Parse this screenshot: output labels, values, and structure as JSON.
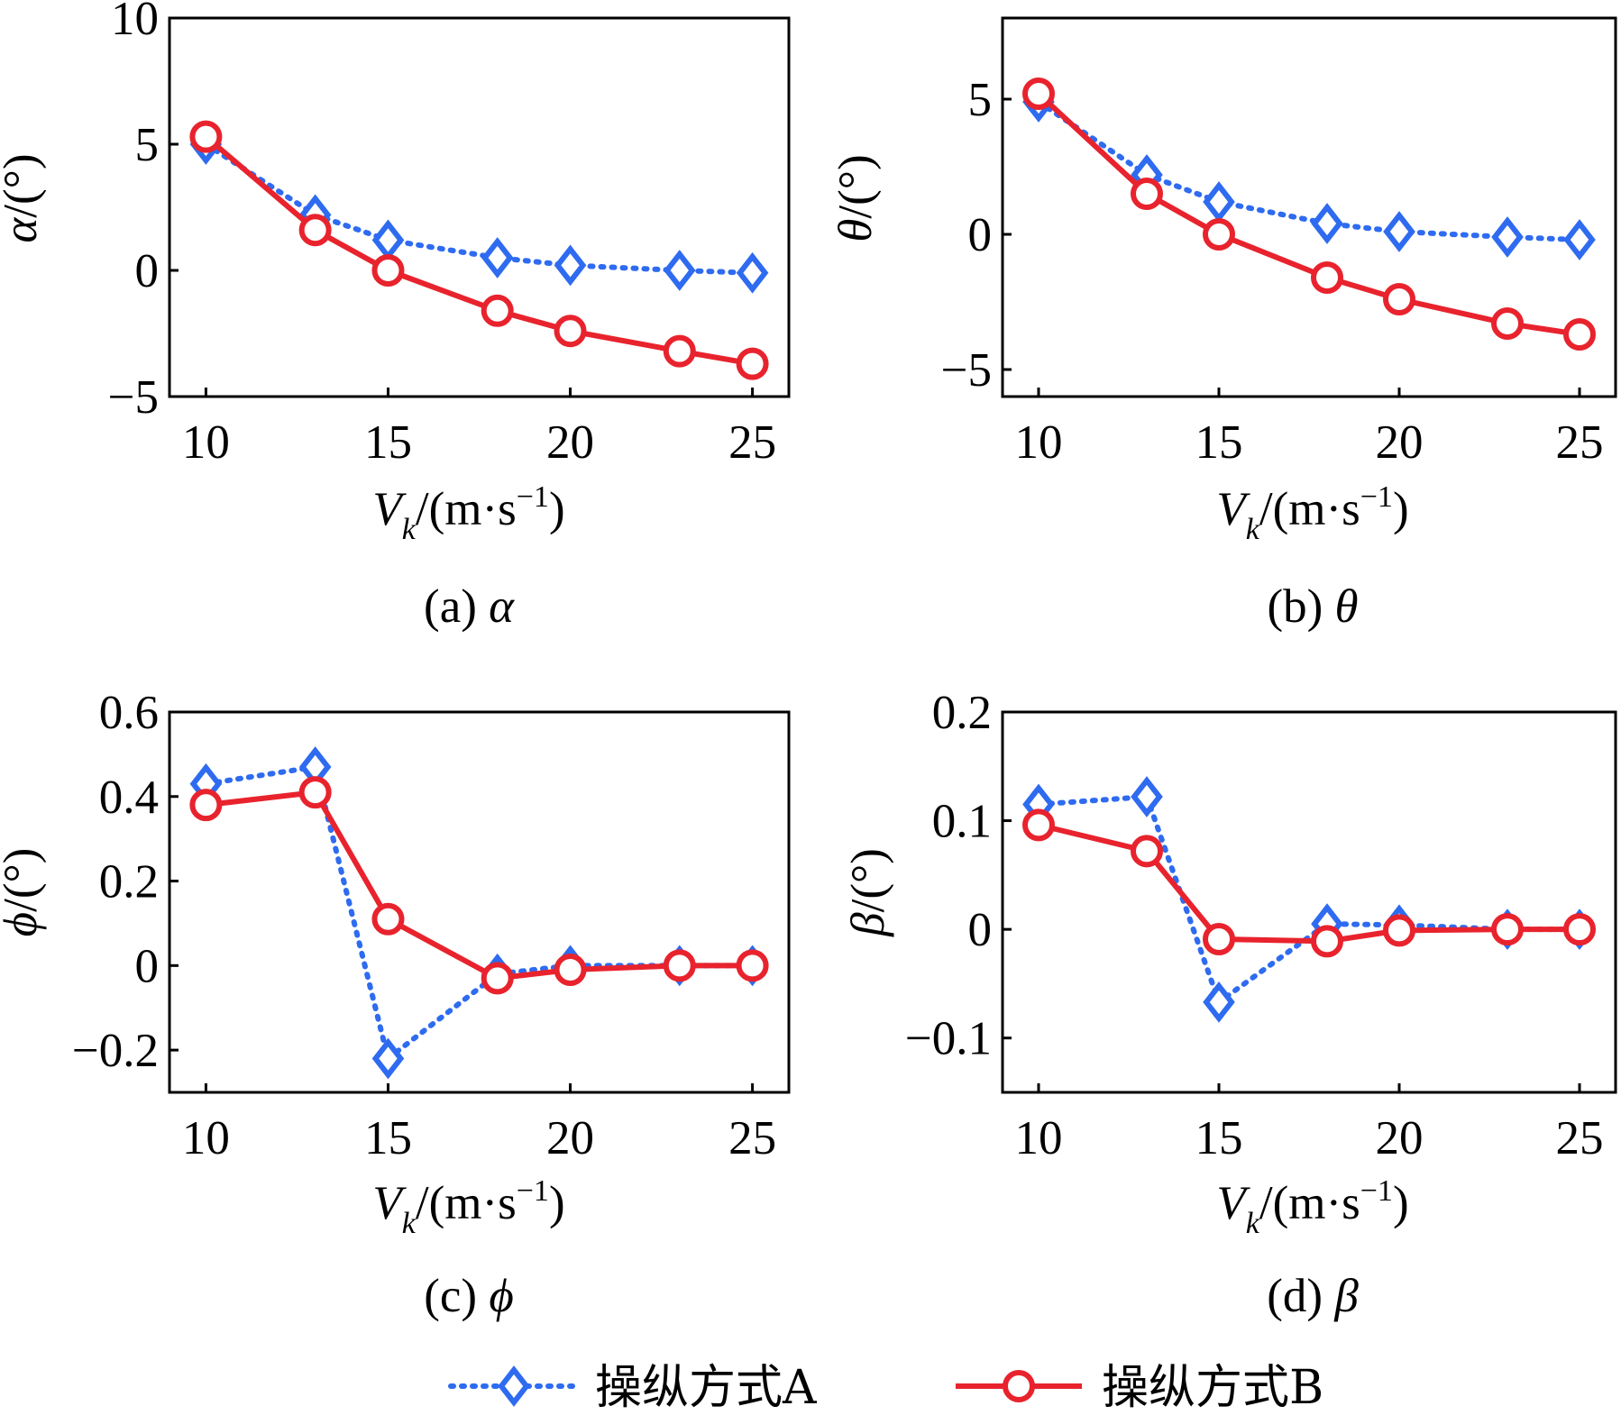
{
  "legend": {
    "series_a": {
      "label": "操纵方式A",
      "color": "#2e6bf0"
    },
    "series_b": {
      "label": "操纵方式B",
      "color": "#e8232d"
    }
  },
  "chart_data": [
    {
      "type": "line",
      "panel": "a",
      "caption_prefix": "(a)",
      "caption_symbol": "α",
      "ylabel_symbol": "α",
      "ylabel_unit": "/(°)",
      "xlabel_symbol": "V",
      "xlabel_sub": "k",
      "xlabel_unit": "/(m·s",
      "xlabel_sup": "−1",
      "xlabel_close": ")",
      "x": [
        10,
        13,
        15,
        18,
        20,
        23,
        25
      ],
      "xlim": [
        9,
        26
      ],
      "ylim": [
        -5,
        10
      ],
      "xticks": [
        10,
        15,
        20,
        25
      ],
      "xtick_labels": [
        "10",
        "15",
        "20",
        "25"
      ],
      "yticks": [
        -5,
        0,
        5,
        10
      ],
      "ytick_labels": [
        "−5",
        "0",
        "5",
        "10"
      ],
      "series": [
        {
          "name": "操纵方式A",
          "values": [
            5.0,
            2.2,
            1.2,
            0.5,
            0.2,
            0.0,
            -0.1
          ]
        },
        {
          "name": "操纵方式B",
          "values": [
            5.3,
            1.6,
            0.0,
            -1.6,
            -2.4,
            -3.2,
            -3.7
          ]
        }
      ]
    },
    {
      "type": "line",
      "panel": "b",
      "caption_prefix": "(b)",
      "caption_symbol": "θ",
      "ylabel_symbol": "θ",
      "ylabel_unit": "/(°)",
      "xlabel_symbol": "V",
      "xlabel_sub": "k",
      "xlabel_unit": "/(m·s",
      "xlabel_sup": "−1",
      "xlabel_close": ")",
      "x": [
        10,
        13,
        15,
        18,
        20,
        23,
        25
      ],
      "xlim": [
        9,
        26
      ],
      "ylim": [
        -6,
        8
      ],
      "xticks": [
        10,
        15,
        20,
        25
      ],
      "xtick_labels": [
        "10",
        "15",
        "20",
        "25"
      ],
      "yticks": [
        -5,
        0,
        5
      ],
      "ytick_labels": [
        "−5",
        "0",
        "5"
      ],
      "series": [
        {
          "name": "操纵方式A",
          "values": [
            4.9,
            2.2,
            1.2,
            0.4,
            0.1,
            -0.1,
            -0.2
          ]
        },
        {
          "name": "操纵方式B",
          "values": [
            5.2,
            1.5,
            0.0,
            -1.6,
            -2.4,
            -3.3,
            -3.7
          ]
        }
      ]
    },
    {
      "type": "line",
      "panel": "c",
      "caption_prefix": "(c)",
      "caption_symbol": "ϕ",
      "ylabel_symbol": "ϕ",
      "ylabel_unit": "/(°)",
      "xlabel_symbol": "V",
      "xlabel_sub": "k",
      "xlabel_unit": "/(m·s",
      "xlabel_sup": "−1",
      "xlabel_close": ")",
      "x": [
        10,
        13,
        15,
        18,
        20,
        23,
        25
      ],
      "xlim": [
        9,
        26
      ],
      "ylim": [
        -0.3,
        0.6
      ],
      "xticks": [
        10,
        15,
        20,
        25
      ],
      "xtick_labels": [
        "10",
        "15",
        "20",
        "25"
      ],
      "yticks": [
        -0.2,
        0,
        0.2,
        0.4,
        0.6
      ],
      "ytick_labels": [
        "−0.2",
        "0",
        "0.2",
        "0.4",
        "0.6"
      ],
      "series": [
        {
          "name": "操纵方式A",
          "values": [
            0.43,
            0.47,
            -0.22,
            -0.02,
            0.0,
            0.0,
            0.0
          ]
        },
        {
          "name": "操纵方式B",
          "values": [
            0.38,
            0.41,
            0.11,
            -0.03,
            -0.01,
            0.0,
            0.0
          ]
        }
      ]
    },
    {
      "type": "line",
      "panel": "d",
      "caption_prefix": "(d)",
      "caption_symbol": "β",
      "ylabel_symbol": "β",
      "ylabel_unit": "/(°)",
      "xlabel_symbol": "V",
      "xlabel_sub": "k",
      "xlabel_unit": "/(m·s",
      "xlabel_sup": "−1",
      "xlabel_close": ")",
      "x": [
        10,
        13,
        15,
        18,
        20,
        23,
        25
      ],
      "xlim": [
        9,
        26
      ],
      "ylim": [
        -0.15,
        0.2
      ],
      "xticks": [
        10,
        15,
        20,
        25
      ],
      "xtick_labels": [
        "10",
        "15",
        "20",
        "25"
      ],
      "yticks": [
        -0.1,
        0,
        0.1,
        0.2
      ],
      "ytick_labels": [
        "−0.1",
        "0",
        "0.1",
        "0.2"
      ],
      "series": [
        {
          "name": "操纵方式A",
          "values": [
            0.115,
            0.122,
            -0.067,
            0.005,
            0.004,
            0.0,
            0.0
          ]
        },
        {
          "name": "操纵方式B",
          "values": [
            0.096,
            0.072,
            -0.009,
            -0.011,
            -0.001,
            0.0,
            0.0
          ]
        }
      ]
    }
  ]
}
